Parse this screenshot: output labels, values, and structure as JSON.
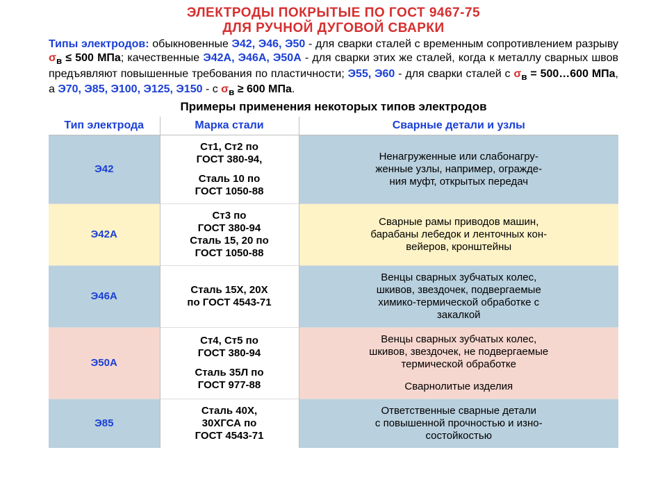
{
  "title": {
    "line1": "ЭЛЕКТРОДЫ  ПОКРЫТЫЕ  ПО ГОСТ 9467-75",
    "line2": "ДЛЯ  РУЧНОЙ  ДУГОВОЙ  СВАРКИ",
    "color": "#d62f2f"
  },
  "intro": {
    "label": "Типы электродов:",
    "label_color": "#1a3fd6",
    "t1": " обыкновенные ",
    "codes1": "Э42, Э46, Э50",
    "t2": " - для  сварки сталей с временным сопротивлением разрыву ",
    "sigma1": "σ",
    "sub": "в",
    "le": " ≤ ",
    "val1": "500 МПа",
    "t3": "; качественные ",
    "codes2": "Э42А, Э46А, Э50А",
    "t4": " - для сварки этих же сталей, когда к металлу сварных швов предъявляют повышенные требования по пластичности; ",
    "codes3": "Э55, Э60",
    "t5": " - для сварки сталей с ",
    "eq": " = ",
    "val2": "500…600 МПа",
    "t6": ", а ",
    "codes4": "Э70, Э85, Э100, Э125, Э150",
    "t7": "  -  с ",
    "ge": " ≥ ",
    "val3": "600 МПа",
    "t8": "."
  },
  "subhead": "Примеры применения некоторых  типов электродов",
  "table": {
    "headers": {
      "h1": "Тип электрода",
      "h2": "Марка стали",
      "h3": "Сварные детали и  узлы",
      "color": "#1a3fd6"
    },
    "rows": [
      {
        "code": "Э42",
        "code_color": "#1a3fd6",
        "bg_code": "#b9d0de",
        "bg_steel": "#ffffff",
        "bg_app": "#b9d0de",
        "steel_lines": [
          "Ст1, Ст2 по",
          "ГОСТ 380-94,",
          "",
          "Сталь 10 по",
          "ГОСТ 1050-88"
        ],
        "app_lines": [
          "Ненагруженные или слабонагру-",
          "женные узлы, например, огражде-",
          "ния муфт, открытых передач"
        ]
      },
      {
        "code": "Э42А",
        "code_color": "#1a3fd6",
        "bg_code": "#fdf3c6",
        "bg_steel": "#ffffff",
        "bg_app": "#fdf3c6",
        "steel_lines": [
          "Ст3 по",
          "ГОСТ 380-94",
          "Сталь 15, 20 по",
          "ГОСТ 1050-88"
        ],
        "app_lines": [
          "Сварные рамы приводов  машин,",
          "барабаны лебедок и ленточных кон-",
          "вейеров, кронштейны"
        ]
      },
      {
        "code": "Э46А",
        "code_color": "#1a3fd6",
        "bg_code": "#b9d0de",
        "bg_steel": "#ffffff",
        "bg_app": "#b9d0de",
        "steel_lines": [
          "Сталь 15Х, 20Х",
          "по ГОСТ 4543-71"
        ],
        "app_lines": [
          "Венцы сварных зубчатых колес,",
          "шкивов,  звездочек, подвергаемые",
          "химико-термической обработке с",
          "закалкой"
        ]
      },
      {
        "code": "Э50А",
        "code_color": "#1a3fd6",
        "bg_code": "#f6d7cf",
        "bg_steel": "#ffffff",
        "bg_app": "#f6d7cf",
        "steel_lines": [
          "Ст4,  Ст5  по",
          "ГОСТ 380-94",
          "",
          "Сталь 35Л по",
          "ГОСТ 977-88"
        ],
        "app_lines": [
          "Венцы сварных зубчатых колес,",
          "шкивов,  звездочек, не подвергаемые",
          "термической обработке",
          "",
          "Сварнолитые изделия"
        ]
      },
      {
        "code": "Э85",
        "code_color": "#1a3fd6",
        "bg_code": "#b9d0de",
        "bg_steel": "#ffffff",
        "bg_app": "#b9d0de",
        "steel_lines": [
          "Сталь 40Х,",
          "30ХГСА  по",
          "ГОСТ 4543-71"
        ],
        "app_lines": [
          "Ответственные  сварные детали",
          "с повышенной прочностью и изно-",
          "состойкостью"
        ]
      }
    ],
    "col_widths": [
      "160px",
      "200px",
      "auto"
    ]
  },
  "colors": {
    "grid": "#bfbfbf",
    "text": "#000000"
  }
}
